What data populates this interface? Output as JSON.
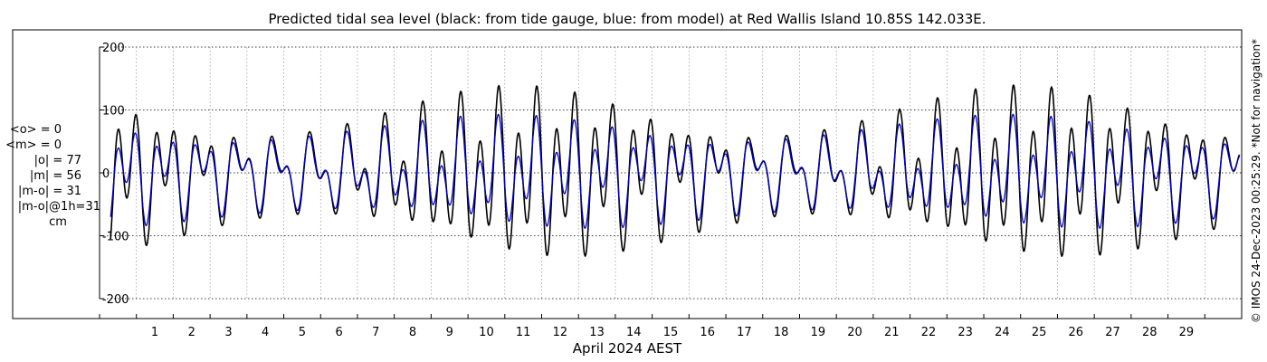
{
  "chart_data": {
    "type": "line",
    "title": "Predicted tidal sea level (black: from tide gauge, blue: from model) at Red Wallis Island 10.85S 142.033E.",
    "xlabel": "April 2024 AEST",
    "ylabel": "",
    "ylim": [
      -200,
      200
    ],
    "yticks": [
      -200,
      -100,
      0,
      100,
      200
    ],
    "xlim": [
      0,
      31
    ],
    "xticks": [
      1,
      2,
      3,
      4,
      5,
      6,
      7,
      8,
      9,
      10,
      11,
      12,
      13,
      14,
      15,
      16,
      17,
      18,
      19,
      20,
      21,
      22,
      23,
      24,
      25,
      26,
      27,
      28,
      29
    ],
    "grid": true,
    "series": [
      {
        "color": "#000000",
        "model": {
          "m2_amp": 66,
          "m2_period_days": 0.5175,
          "m2_phase": 0.3,
          "k1_amp": 44,
          "k1_period_days": 0.9973,
          "k1_phase": 1.2,
          "env_amp": 0.55,
          "env_period_days": 13.66,
          "env_phase": 0.8,
          "t_start": 0.3,
          "t_end": 30.95
        }
      },
      {
        "color": "#0000cc",
        "model": {
          "m2_amp": 44,
          "m2_period_days": 0.5175,
          "m2_phase": 0.42,
          "k1_amp": 38,
          "k1_period_days": 0.9973,
          "k1_phase": 1.25,
          "env_amp": 0.35,
          "env_period_days": 13.66,
          "env_phase": 0.8,
          "t_start": 0.3,
          "t_end": 30.95
        }
      }
    ]
  },
  "stats": {
    "mean_obs": "<o> = 0",
    "mean_model": "<m> = 0",
    "abs_obs": "|o| = 77",
    "abs_model": "|m| = 56",
    "abs_diff": "|m-o| = 31",
    "abs_diff_1h": "|m-o|@1h=31",
    "unit": "cm"
  },
  "credit": "© IMOS 24-Dec-2023 00:25:29. *Not for navigation*",
  "colors": {
    "gauge": "#000000",
    "model": "#0000cc",
    "grid": "#808080"
  }
}
